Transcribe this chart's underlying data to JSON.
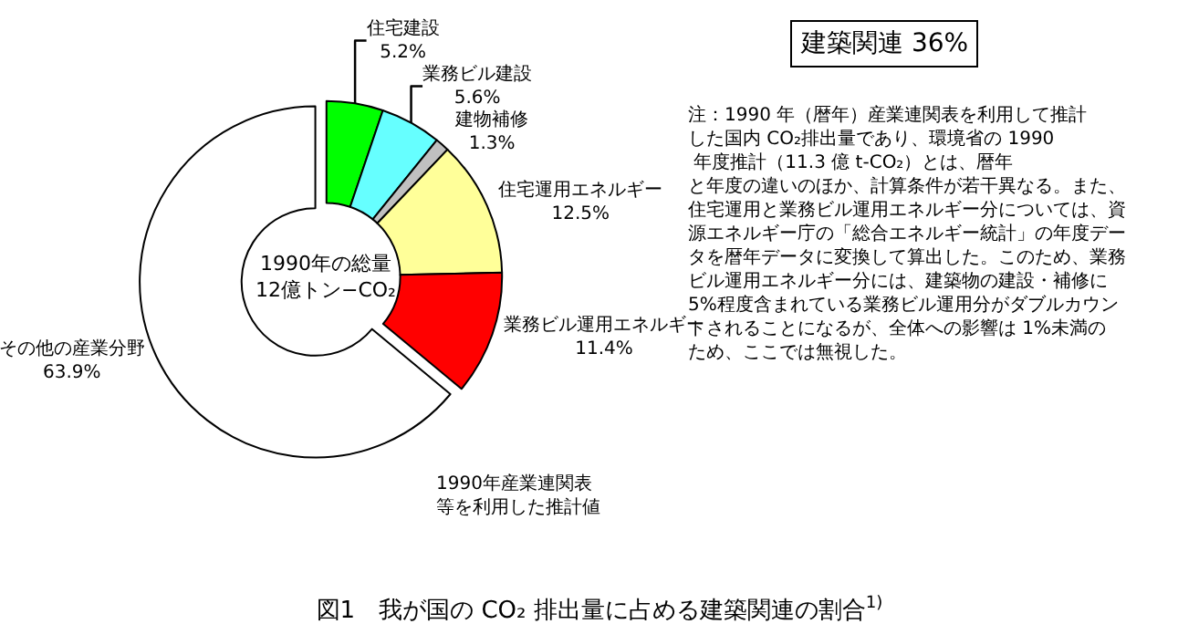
{
  "chart_data": {
    "type": "donut",
    "title": "図1　我が国の CO₂ 排出量に占める建築関連の割合$^{1)}$",
    "categories": [
      "住宅建設",
      "業務ビル建設",
      "建物補修",
      "住宅運用エネルギー",
      "業務ビル運用エネルギー",
      "その他の産業分野"
    ],
    "values": [
      5.2,
      5.6,
      1.3,
      12.5,
      11.4,
      63.9
    ],
    "colors": [
      "#00ff00",
      "#66ffff",
      "#c0c0c0",
      "#ffff99",
      "#ff0000",
      "#ffffff"
    ],
    "value_labels": [
      "5.2%",
      "5.6%",
      "1.3%",
      "12.5%",
      "11.4%",
      "63.9%"
    ],
    "legend": false,
    "annotations": [
      "建築関連 36%",
      "注：1990 年（暦年）産業連関表を利用して推計した国内 CO₂排出量であり、環境省の 1990 年度推計（11.3 億 t-CO₂）とは、暦年と年度の違いのほか、計算条件が若干異なる。また、住宅運用と業務ビル運用エネルギー分については、資源エネルギー庁の「総合エネルギー統計」の年度データを暦年データに変換して算出した。このため、業務ビル運用エネルギー分には、建築物の建設・補修に 5%程度含まれている業務ビル運用分がダブルカウントされることになるが、全体への影響は 1%未満のため、ここでは無視した。",
      "1990年の総量 12億トン−CO₂",
      "1990年産業連関表等を利用した推計値"
    ]
  }
}
